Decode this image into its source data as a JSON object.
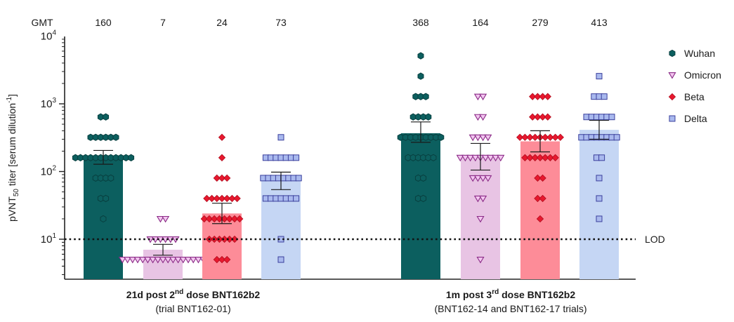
{
  "chart_data": {
    "type": "bar",
    "yscale": "log",
    "ylim": [
      2.5,
      10000
    ],
    "ylabel": {
      "pre": "pVNT",
      "sub": "50",
      "mid": " titer [serum dilution",
      "sup": "-1",
      "post": "]"
    },
    "yticks": [
      {
        "value": 10,
        "base": "10",
        "exp": "1"
      },
      {
        "value": 100,
        "base": "10",
        "exp": "2"
      },
      {
        "value": 1000,
        "base": "10",
        "exp": "3"
      },
      {
        "value": 10000,
        "base": "10",
        "exp": "4"
      }
    ],
    "gmt_label": "GMT",
    "lod": {
      "value": 10,
      "label": "LOD"
    },
    "variants": [
      {
        "name": "Wuhan",
        "color": "#0c5f5f",
        "marker": "hexagon",
        "marker_fill": "#0c5f5f",
        "marker_stroke": "#083f3f"
      },
      {
        "name": "Omicron",
        "color": "#e8c4e4",
        "marker": "triangle-down",
        "marker_fill": "#f3c6f0",
        "marker_stroke": "#8a2a86"
      },
      {
        "name": "Beta",
        "color": "#fd8c98",
        "marker": "diamond",
        "marker_fill": "#e8182e",
        "marker_stroke": "#b00d1f"
      },
      {
        "name": "Delta",
        "color": "#c5d6f4",
        "marker": "square",
        "marker_fill": "#a9b9ee",
        "marker_stroke": "#3a3f9c"
      }
    ],
    "groups": [
      {
        "title": {
          "pre": "21d post 2",
          "sup": "nd",
          "post": " dose BNT162b2"
        },
        "subtitle": "(trial BNT162-01)",
        "bars": [
          {
            "variant": "Wuhan",
            "gmt": 160,
            "gmt_text": "160",
            "ci": [
              128,
              205
            ],
            "points": [
              640,
              640,
              320,
              320,
              320,
              320,
              320,
              320,
              160,
              160,
              160,
              160,
              160,
              160,
              160,
              160,
              160,
              160,
              160,
              160,
              80,
              80,
              80,
              80,
              40,
              40,
              20
            ]
          },
          {
            "variant": "Omicron",
            "gmt": 7,
            "gmt_text": "7",
            "ci": [
              5.8,
              8.4
            ],
            "points": [
              20,
              20,
              10,
              10,
              10,
              10,
              10,
              10,
              5,
              5,
              5,
              5,
              5,
              5,
              5,
              5,
              5,
              5,
              5,
              5,
              5,
              5,
              5,
              5,
              5
            ]
          },
          {
            "variant": "Beta",
            "gmt": 24,
            "gmt_text": "24",
            "ci": [
              17,
              34
            ],
            "points": [
              320,
              160,
              80,
              80,
              80,
              40,
              40,
              40,
              40,
              40,
              40,
              40,
              20,
              20,
              20,
              20,
              20,
              20,
              20,
              20,
              10,
              10,
              10,
              10,
              10,
              10,
              5,
              5,
              5
            ]
          },
          {
            "variant": "Delta",
            "gmt": 73,
            "gmt_text": "73",
            "ci": [
              54,
              98
            ],
            "points": [
              320,
              160,
              160,
              160,
              160,
              160,
              160,
              160,
              80,
              80,
              80,
              80,
              80,
              80,
              80,
              80,
              40,
              40,
              40,
              40,
              40,
              40,
              40,
              10,
              5
            ]
          }
        ]
      },
      {
        "title": {
          "pre": "1m post 3",
          "sup": "rd",
          "post": " dose BNT162b2"
        },
        "subtitle": "(BNT162-14 and BNT162-17 trials)",
        "bars": [
          {
            "variant": "Wuhan",
            "gmt": 368,
            "gmt_text": "368",
            "ci": [
              270,
              540
            ],
            "points": [
              5120,
              2560,
              1280,
              1280,
              1280,
              640,
              640,
              640,
              640,
              320,
              320,
              320,
              320,
              320,
              320,
              320,
              320,
              320,
              160,
              160,
              160,
              160,
              160,
              160,
              80,
              80,
              40,
              40
            ]
          },
          {
            "variant": "Omicron",
            "gmt": 164,
            "gmt_text": "164",
            "ci": [
              105,
              260
            ],
            "points": [
              1280,
              1280,
              640,
              640,
              320,
              320,
              320,
              320,
              160,
              160,
              160,
              160,
              160,
              160,
              160,
              160,
              160,
              80,
              80,
              80,
              80,
              40,
              40,
              20,
              5
            ]
          },
          {
            "variant": "Beta",
            "gmt": 279,
            "gmt_text": "279",
            "ci": [
              195,
              400
            ],
            "points": [
              1280,
              1280,
              1280,
              1280,
              640,
              640,
              640,
              640,
              320,
              320,
              320,
              320,
              320,
              320,
              320,
              320,
              320,
              160,
              160,
              160,
              160,
              160,
              160,
              160,
              80,
              80,
              40,
              40,
              20
            ]
          },
          {
            "variant": "Delta",
            "gmt": 413,
            "gmt_text": "413",
            "ci": [
              300,
              570
            ],
            "points": [
              2560,
              1280,
              1280,
              1280,
              640,
              640,
              640,
              640,
              640,
              640,
              320,
              320,
              320,
              320,
              320,
              320,
              320,
              320,
              160,
              160,
              80,
              40,
              20
            ]
          }
        ]
      }
    ],
    "legend_position": "right",
    "grid": false
  }
}
